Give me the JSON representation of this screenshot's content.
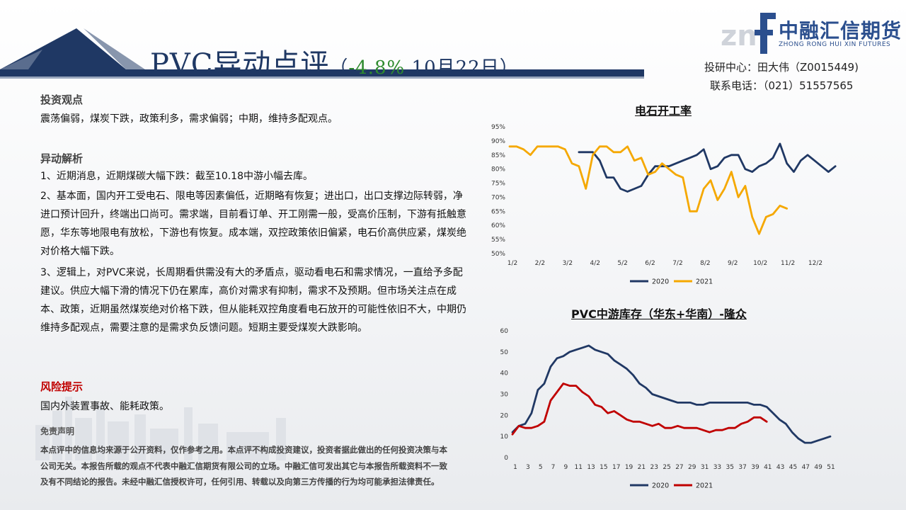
{
  "header": {
    "title_main": "PVC异动点评",
    "title_open": "（",
    "title_pct": "-4.8%",
    "title_date": " 10月22日）",
    "brand_name": "中融汇信期货",
    "brand_en": "ZHONG RONG HUI XIN FUTURES",
    "author": "投研中心：田大伟（Z0015449)",
    "phone": "联系电话：（021）51557565"
  },
  "body": {
    "view_head": "投资观点",
    "view_text": "震荡偏弱，煤炭下跌，政策利多，需求偏弱；中期，维持多配观点。",
    "analysis_head": "异动解析",
    "analysis_1": "1、近期消息，近期煤碳大幅下跌：截至10.18中游小幅去库。",
    "analysis_2": "2、基本面，国内开工受电石、限电等因素偏低，近期略有恢复；进出口，出口支撑边际转弱，净进口预计回升，终端出口尚可。需求端，目前看订单、开工刚需一般，受高价压制，下游有抵触意愿，华东等地限电有放松，下游也有恢复。成本端，双控政策依旧偏紧，电石价高供应紧，煤炭绝对价格大幅下跌。",
    "analysis_3": "3、逻辑上，对PVC来说，长周期看供需没有大的矛盾点，驱动看电石和需求情况，一直给予多配建议。供应大幅下滑的情况下仍在累库，高价对需求有抑制，需求不及预期。但市场关注点在成本、政策，近期虽然煤炭绝对价格下跌，但从能耗双控角度看电石放开的可能性依旧不大，中期仍维持多配观点，需要注意的是需求负反馈问题。短期主要受煤炭大跌影响。",
    "risk_head": "风险提示",
    "risk_text": "国内外装置事故、能耗政策。",
    "disclaimer_head": "免责声明",
    "disclaimer_text": "本点评中的信息均来源于公开资料，仅作参考之用。本点评不构成投资建议，投资者据此做出的任何投资决策与本公司无关。本报告所载的观点不代表中融汇信期货有限公司的立场。中融汇信可发出其它与本报告所载资料不一致及有不同结论的报告。未经中融汇信授权许可，任何引用、转载以及向第三方传播的行为均可能承担法律责任。"
  },
  "colors": {
    "navy": "#1f3864",
    "series_2020": "#203864",
    "series_2021_top": "#f5a800",
    "series_2021_bottom": "#c00000"
  },
  "chart_data": [
    {
      "type": "line",
      "title": "电石开工率",
      "y_ticks": [
        "95%",
        "90%",
        "85%",
        "80%",
        "75%",
        "70%",
        "65%",
        "60%",
        "55%",
        "50%"
      ],
      "ylim": [
        50,
        95
      ],
      "x_ticks": [
        "1/2",
        "2/2",
        "3/2",
        "4/2",
        "5/2",
        "6/2",
        "7/2",
        "8/2",
        "9/2",
        "10/2",
        "11/2",
        "12/2"
      ],
      "xlim": [
        0,
        48
      ],
      "legend": "bottom",
      "series": [
        {
          "name": "2020",
          "color": "#203864",
          "x": [
            10,
            11,
            12,
            13,
            14,
            15,
            16,
            17,
            18,
            19,
            20,
            21,
            22,
            23,
            24,
            25,
            26,
            27,
            28,
            29,
            30,
            31,
            32,
            33,
            34,
            35,
            36,
            37,
            38,
            39,
            40,
            41,
            42,
            43,
            44,
            45,
            46,
            47
          ],
          "values": [
            86,
            86,
            86,
            83,
            77,
            77,
            73,
            72,
            73,
            74,
            78,
            81,
            81,
            81,
            82,
            83,
            84,
            85,
            87,
            80,
            81,
            84,
            85,
            85,
            80,
            79,
            81,
            82,
            84,
            89,
            82,
            79,
            83,
            85,
            83,
            81,
            79,
            81
          ]
        },
        {
          "name": "2021",
          "color": "#f5a800",
          "x": [
            0,
            1,
            2,
            3,
            4,
            5,
            6,
            7,
            8,
            9,
            10,
            11,
            12,
            13,
            14,
            15,
            16,
            17,
            18,
            19,
            20,
            21,
            22,
            23,
            24,
            25,
            26,
            27,
            28,
            29,
            30,
            31,
            32,
            33,
            34,
            35,
            36,
            37,
            38,
            39,
            40
          ],
          "values": [
            88,
            88,
            87,
            85,
            88,
            88,
            88,
            88,
            87,
            82,
            81,
            73,
            85,
            88,
            88,
            86,
            86,
            88,
            83,
            84,
            78,
            79,
            82,
            80,
            78,
            77,
            65,
            65,
            73,
            76,
            69,
            73,
            79,
            70,
            74,
            63,
            57,
            63,
            64,
            67,
            66
          ]
        }
      ]
    },
    {
      "type": "line",
      "title": "PVC中游库存（华东+华南）-隆众",
      "y_ticks": [
        "60",
        "50",
        "40",
        "30",
        "20",
        "10",
        "0"
      ],
      "ylim": [
        0,
        60
      ],
      "x_ticks": [
        "1",
        "3",
        "5",
        "7",
        "9",
        "11",
        "13",
        "15",
        "17",
        "19",
        "21",
        "23",
        "25",
        "27",
        "29",
        "31",
        "33",
        "35",
        "37",
        "39",
        "41",
        "43",
        "45",
        "47",
        "49",
        "51"
      ],
      "xlim": [
        1,
        52
      ],
      "legend": "bottom",
      "series": [
        {
          "name": "2020",
          "color": "#203864",
          "x": [
            1,
            2,
            3,
            4,
            5,
            6,
            7,
            8,
            9,
            10,
            11,
            12,
            13,
            14,
            15,
            16,
            17,
            18,
            19,
            20,
            21,
            22,
            23,
            24,
            25,
            26,
            27,
            28,
            29,
            30,
            31,
            32,
            33,
            34,
            35,
            36,
            37,
            38,
            39,
            40,
            41,
            42,
            43,
            44,
            45,
            46,
            47,
            48,
            49,
            50,
            51
          ],
          "values": [
            12,
            15,
            16,
            21,
            32,
            35,
            43,
            47,
            48,
            50,
            51,
            52,
            53,
            51,
            50,
            49,
            46,
            44,
            42,
            39,
            35,
            33,
            30,
            29,
            28,
            27,
            26,
            26,
            26,
            25,
            25,
            26,
            26,
            26,
            26,
            26,
            26,
            26,
            25,
            25,
            24,
            21,
            18,
            16,
            12,
            9,
            7,
            7,
            8,
            9,
            10
          ]
        },
        {
          "name": "2021",
          "color": "#c00000",
          "x": [
            1,
            2,
            3,
            4,
            5,
            6,
            7,
            8,
            9,
            10,
            11,
            12,
            13,
            14,
            15,
            16,
            17,
            18,
            19,
            20,
            21,
            22,
            23,
            24,
            25,
            26,
            27,
            28,
            29,
            30,
            31,
            32,
            33,
            34,
            35,
            36,
            37,
            38,
            39,
            40,
            41
          ],
          "values": [
            11,
            15,
            14,
            14,
            15,
            17,
            27,
            31,
            35,
            34,
            34,
            31,
            29,
            25,
            24,
            21,
            22,
            20,
            18,
            17,
            17,
            16,
            15,
            16,
            14,
            14,
            15,
            14,
            14,
            14,
            13,
            12,
            13,
            13,
            14,
            14,
            16,
            17,
            19,
            19,
            17
          ]
        }
      ]
    }
  ]
}
